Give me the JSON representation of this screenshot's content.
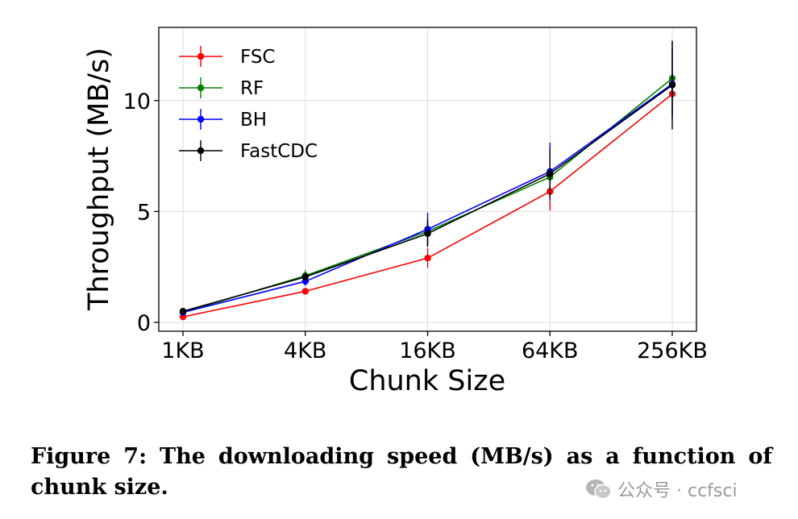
{
  "chart_data": {
    "type": "line",
    "xlabel": "Chunk Size",
    "ylabel": "Throughput (MB/s)",
    "categories": [
      "1KB",
      "4KB",
      "16KB",
      "64KB",
      "256KB"
    ],
    "ylim": [
      -0.4,
      13.3
    ],
    "yticks": [
      0,
      5,
      10
    ],
    "grid": true,
    "legend_position": "top-left",
    "series": [
      {
        "name": "FSC",
        "color": "#ff0000",
        "values": [
          0.25,
          1.4,
          2.9,
          5.9,
          10.3
        ],
        "errors": [
          0.05,
          0.1,
          0.45,
          0.85,
          1.0
        ]
      },
      {
        "name": "RF",
        "color": "#008000",
        "values": [
          0.45,
          2.1,
          4.1,
          6.55,
          11.0
        ],
        "errors": [
          0.08,
          0.25,
          0.6,
          1.1,
          1.7
        ]
      },
      {
        "name": "BH",
        "color": "#0000ff",
        "values": [
          0.45,
          1.85,
          4.2,
          6.8,
          10.75
        ],
        "errors": [
          0.08,
          0.2,
          0.75,
          1.3,
          1.6
        ]
      },
      {
        "name": "FastCDC",
        "color": "#000000",
        "values": [
          0.5,
          2.05,
          4.0,
          6.7,
          10.7
        ],
        "errors": [
          0.08,
          0.2,
          0.6,
          1.1,
          2.0
        ]
      }
    ]
  },
  "caption": {
    "text": "Figure 7: The downloading speed (MB/s) as a function of chunk size."
  },
  "watermark": {
    "text": "公众号 · ccfsci"
  }
}
